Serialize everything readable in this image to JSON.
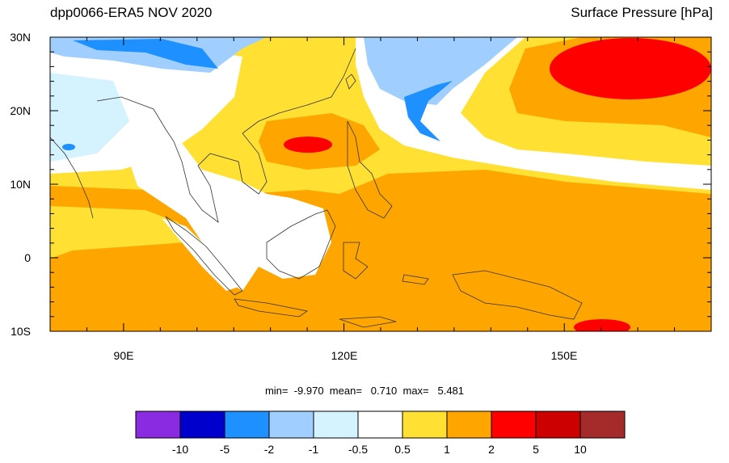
{
  "header": {
    "left_title": "dpp0066-ERA5 NOV 2020",
    "right_title": "Surface Pressure [hPa]"
  },
  "axes": {
    "lat_labels": [
      "30N",
      "20N",
      "10N",
      "0",
      "10S"
    ],
    "lon_labels": [
      "90E",
      "120E",
      "150E"
    ],
    "lat_range": [
      -10,
      30
    ],
    "lon_range": [
      80,
      170
    ]
  },
  "stats": {
    "text": "min=  -9.970  mean=   0.710  max=   5.481"
  },
  "colorbar": {
    "colors": [
      "#8a2be2",
      "#0000cd",
      "#1e90ff",
      "#a0cfff",
      "#d4f2ff",
      "#ffffff",
      "#ffe033",
      "#ffa500",
      "#ff0000",
      "#cd0000",
      "#a52a2a"
    ],
    "labels": [
      "-10",
      "-5",
      "-2",
      "-1",
      "-0.5",
      "0.5",
      "1",
      "2",
      "5",
      "10"
    ]
  }
}
